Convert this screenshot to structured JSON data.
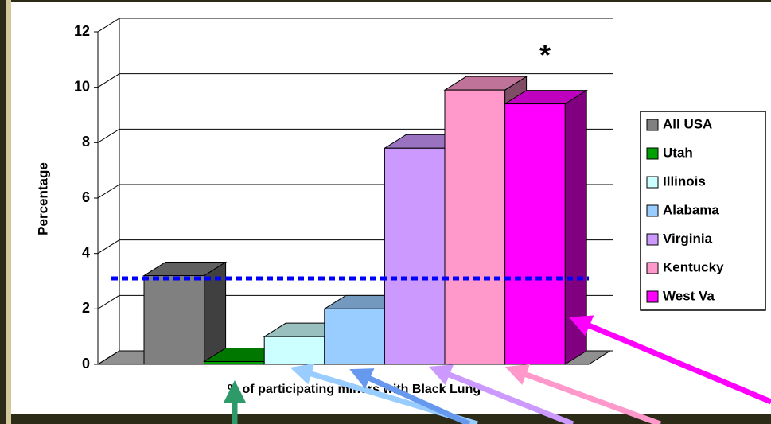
{
  "chart_data": {
    "type": "bar3d",
    "y_axis_label": "Percentage",
    "x_axis_label": "% of participating miners with Black Lung",
    "annotation": "*",
    "categories": [
      "% of participating miners with Black Lung"
    ],
    "series": [
      {
        "name": "All USA",
        "color": "#808080",
        "values": [
          3.2
        ]
      },
      {
        "name": "Utah",
        "color": "#00a000",
        "values": [
          0.1
        ]
      },
      {
        "name": "Illinois",
        "color": "#ccffff",
        "values": [
          1.0
        ]
      },
      {
        "name": "Alabama",
        "color": "#99ccff",
        "values": [
          2.0
        ]
      },
      {
        "name": "Virginia",
        "color": "#cc99ff",
        "values": [
          7.8
        ]
      },
      {
        "name": "Kentucky",
        "color": "#ff99cc",
        "values": [
          9.9
        ]
      },
      {
        "name": "West Va",
        "color": "#ff00ff",
        "values": [
          9.4
        ]
      }
    ],
    "reference_line": 3.1,
    "reference_color": "#0000ff",
    "ylim": [
      0,
      12
    ],
    "yticks": [
      0,
      2,
      4,
      6,
      8,
      10,
      12
    ],
    "grid": true,
    "legend": "right"
  }
}
